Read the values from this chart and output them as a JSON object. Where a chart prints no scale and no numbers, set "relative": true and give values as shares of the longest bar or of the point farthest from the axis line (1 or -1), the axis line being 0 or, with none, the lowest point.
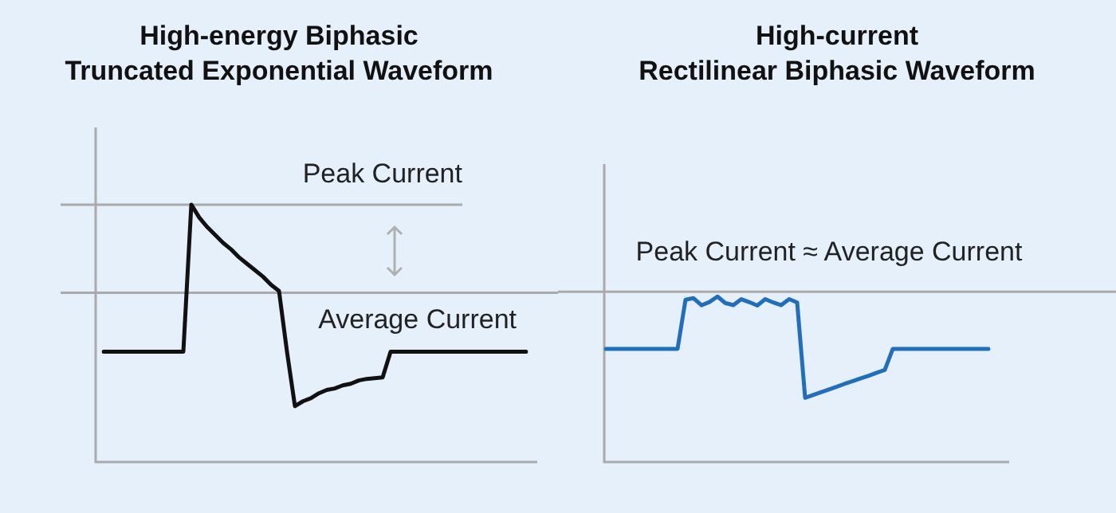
{
  "chart_data": [
    {
      "type": "line",
      "title": "High-energy Biphasic\nTruncated Exponential Waveform",
      "relative": true,
      "tick_labels": false,
      "marker": "none",
      "line_style": "solid",
      "categories": [
        null,
        null,
        null,
        null,
        null,
        null,
        null,
        null,
        null,
        null,
        null,
        null,
        null,
        null,
        null,
        null,
        null,
        null,
        null,
        null,
        null,
        null,
        null,
        null,
        null,
        null,
        null,
        null,
        null,
        null,
        null,
        null,
        null,
        null,
        null,
        null,
        null,
        null,
        null,
        null,
        null,
        null,
        null,
        null,
        null,
        null,
        null,
        null,
        null,
        null,
        null,
        null,
        null,
        null
      ],
      "series": [
        {
          "color": "#111111",
          "values": [
            0.429,
            0.429,
            0.429,
            0.429,
            0.429,
            0.429,
            0.429,
            0.429,
            0.429,
            0.429,
            0.429,
            1,
            0.95,
            0.913,
            0.882,
            0.851,
            0.826,
            0.795,
            0.77,
            0.745,
            0.72,
            0.689,
            0.665,
            0.429,
            0.217,
            0.236,
            0.248,
            0.267,
            0.28,
            0.286,
            0.298,
            0.304,
            0.317,
            0.323,
            0.326,
            0.329,
            0.429,
            0.429,
            0.429,
            0.429,
            0.429,
            0.429,
            0.429,
            0.429,
            0.429,
            0.429,
            0.429,
            0.429,
            0.429,
            0.429,
            0.429,
            0.429,
            0.429,
            0.429
          ]
        }
      ],
      "ref_lines": [
        {
          "axis": "y",
          "value": 1,
          "label": "Peak Current",
          "color": "#aaaaaa"
        },
        {
          "axis": "y",
          "value": 0.658,
          "label": "Average Current",
          "color": "#aaaaaa"
        }
      ]
    },
    {
      "type": "line",
      "title": "High-current\nRectilinear Biphasic Waveform",
      "relative": true,
      "tick_labels": false,
      "marker": "none",
      "line_style": "solid",
      "categories": [
        null,
        null,
        null,
        null,
        null,
        null,
        null,
        null,
        null,
        null,
        null,
        null,
        null,
        null,
        null,
        null,
        null,
        null,
        null,
        null,
        null,
        null,
        null,
        null,
        null,
        null,
        null,
        null,
        null,
        null,
        null,
        null,
        null,
        null,
        null,
        null,
        null,
        null,
        null,
        null,
        null,
        null,
        null,
        null,
        null,
        null,
        null,
        null,
        null
      ],
      "series": [
        {
          "color": "#1f6fc0",
          "values": [
            0.684,
            0.684,
            0.684,
            0.684,
            0.684,
            0.684,
            0.684,
            0.684,
            0.684,
            0.684,
            0.981,
            0.99,
            0.947,
            0.967,
            1,
            0.96,
            0.948,
            0.984,
            0.966,
            0.946,
            0.984,
            0.964,
            0.948,
            0.984,
            0.964,
            0.388,
            0.405,
            0.422,
            0.439,
            0.455,
            0.473,
            0.489,
            0.506,
            0.522,
            0.54,
            0.556,
            0.684,
            0.684,
            0.684,
            0.684,
            0.684,
            0.684,
            0.684,
            0.684,
            0.684,
            0.684,
            0.684,
            0.684,
            0.684
          ]
        }
      ],
      "ref_lines": [
        {
          "axis": "y",
          "value": 1.029,
          "label": "Peak Current ≈ Average Current",
          "color": "#aaaaaa"
        }
      ]
    }
  ]
}
